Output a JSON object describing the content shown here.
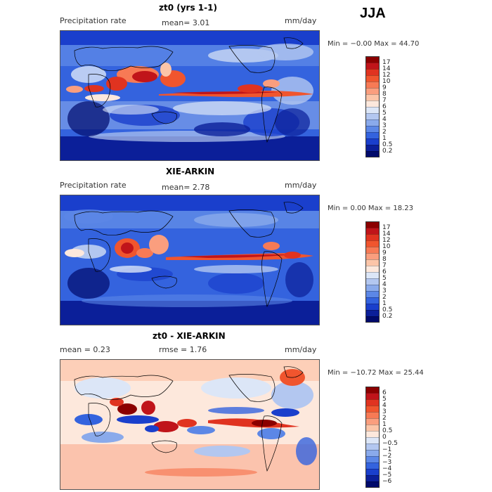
{
  "season": "JJA",
  "panels": [
    {
      "title": "zt0 (yrs 1-1)",
      "left_label": "Precipitation rate",
      "mid_label": "mean=   3.01",
      "units": "mm/day",
      "minmax": "Min =  −0.00 Max =  44.70",
      "kind": "precip"
    },
    {
      "title": "XIE-ARKIN",
      "left_label": "Precipitation rate",
      "mid_label": "mean=   2.78",
      "units": "mm/day",
      "minmax": "Min =   0.00 Max =  18.23",
      "kind": "precip"
    },
    {
      "title": "zt0 - XIE-ARKIN",
      "left_label": "mean =   0.23",
      "mid_label": "rmse =   1.76",
      "units": "mm/day",
      "minmax": "Min = −10.72 Max =  25.44",
      "kind": "diff"
    }
  ],
  "colorbars": {
    "precip": {
      "labels": [
        "17",
        "14",
        "12",
        "10",
        "9",
        "8",
        "7",
        "6",
        "5",
        "4",
        "3",
        "2",
        "1",
        "0.5",
        "0.2"
      ],
      "colors": [
        "#8b0000",
        "#c0141a",
        "#e03320",
        "#f0552e",
        "#f77a55",
        "#fa9e7e",
        "#fcc5a8",
        "#fde8dc",
        "#dce6f7",
        "#b3c7f0",
        "#8aaaeb",
        "#5c87e6",
        "#3463de",
        "#1a3fcc",
        "#0b1f99",
        "#000a6b"
      ]
    },
    "diff": {
      "labels": [
        "6",
        "5",
        "4",
        "3",
        "2",
        "1",
        "0.5",
        "0",
        "−0.5",
        "−1",
        "−2",
        "−3",
        "−4",
        "−5",
        "−6"
      ],
      "colors": [
        "#8b0000",
        "#c0141a",
        "#e03320",
        "#f0552e",
        "#f77a55",
        "#fa9e7e",
        "#fcc5a8",
        "#fde8dc",
        "#dce6f7",
        "#b3c7f0",
        "#8aaaeb",
        "#5c87e6",
        "#3463de",
        "#1a3fcc",
        "#0b1f99",
        "#000a6b"
      ]
    }
  }
}
